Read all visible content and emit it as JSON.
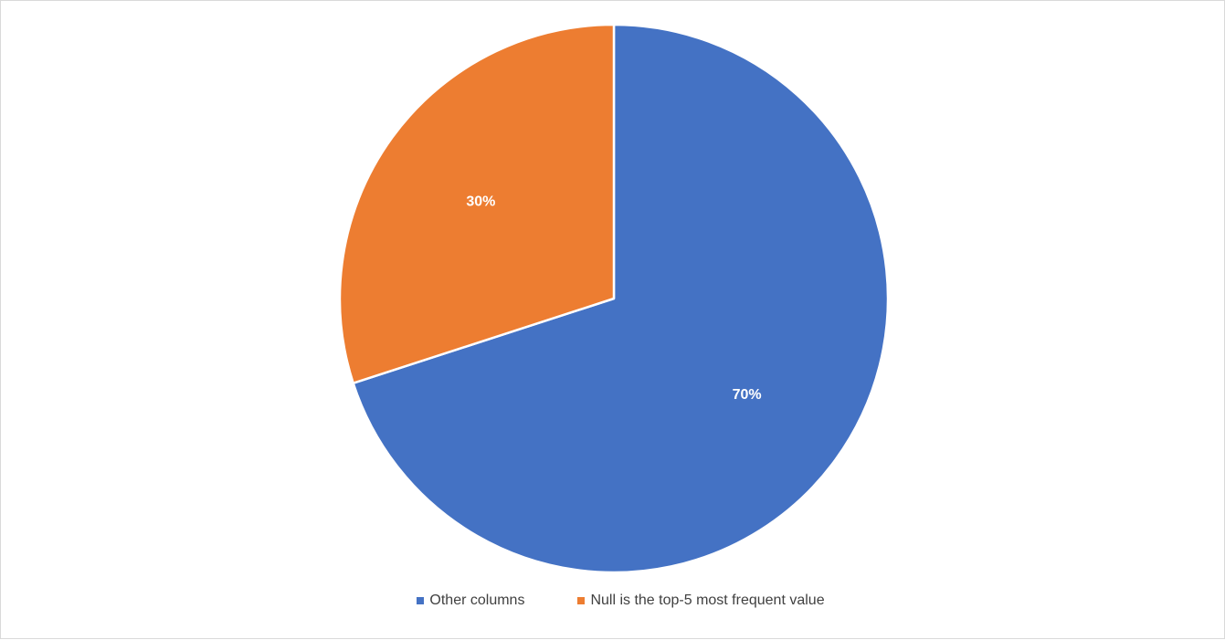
{
  "chart_data": {
    "type": "pie",
    "title": "",
    "slices": [
      {
        "name": "Other columns",
        "value": 70,
        "label": "70%",
        "color": "#4472C4"
      },
      {
        "name": "Null is the top-5 most frequent value",
        "value": 30,
        "label": "30%",
        "color": "#ED7D31"
      }
    ],
    "start_angle_deg": 0,
    "direction": "clockwise",
    "data_labels": "inside",
    "legend": {
      "position": "bottom"
    }
  }
}
